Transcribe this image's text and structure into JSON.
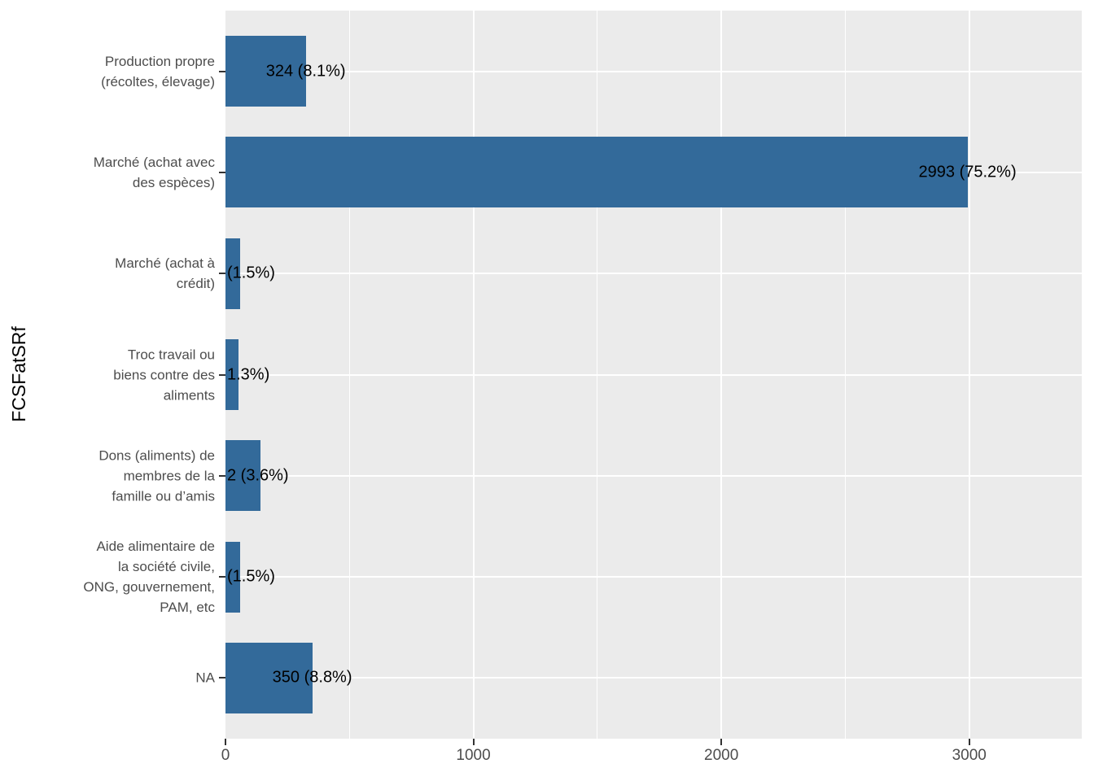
{
  "y_axis_title": "FCSFatSRf",
  "style": {
    "bar_color": "#336A9A",
    "panel_background": "#EBEBEB",
    "grid_color": "#FFFFFF",
    "axis_text_color": "#4D4D4D",
    "value_label_color": "#000000",
    "tick_color": "#333333"
  },
  "chart_data": {
    "type": "bar",
    "orientation": "horizontal",
    "title": "",
    "xlabel": "",
    "ylabel": "FCSFatSRf",
    "xlim": [
      0,
      3454
    ],
    "x_ticks": [
      0,
      1000,
      2000,
      3000
    ],
    "x_minor_ticks": [
      500,
      1500,
      2500
    ],
    "grid": true,
    "legend": false,
    "categories": [
      "NA",
      "Aide alimentaire de la société civile, ONG, gouvernement, PAM, etc",
      "Dons (aliments) de membres de la famille ou d’amis",
      "Troc travail ou biens contre des aliments",
      "Marché (achat à crédit)",
      "Marché (achat avec des espèces)",
      "Production propre (récoltes, élevage)"
    ],
    "values": [
      350,
      60,
      142,
      52,
      60,
      2993,
      324
    ],
    "percentages": [
      8.8,
      1.5,
      3.6,
      1.3,
      1.5,
      75.2,
      8.1
    ],
    "bars": [
      {
        "category_lines": [
          "NA"
        ],
        "value": 350,
        "label": "350 (8.8%)",
        "label_clipped": false
      },
      {
        "category_lines": [
          "Aide alimentaire de",
          "la société civile,",
          "ONG, gouvernement,",
          "PAM, etc"
        ],
        "value": 60,
        "label": "(1.5%)",
        "label_clipped": true
      },
      {
        "category_lines": [
          "Dons (aliments) de",
          "membres de la",
          "famille ou d’amis"
        ],
        "value": 142,
        "label": "2 (3.6%)",
        "label_clipped": true
      },
      {
        "category_lines": [
          "Troc travail ou",
          "biens contre des",
          "aliments"
        ],
        "value": 52,
        "label": "1.3%)",
        "label_clipped": true
      },
      {
        "category_lines": [
          "Marché (achat à",
          "crédit)"
        ],
        "value": 60,
        "label": "(1.5%)",
        "label_clipped": true
      },
      {
        "category_lines": [
          "Marché (achat avec",
          "des espèces)"
        ],
        "value": 2993,
        "label": "2993 (75.2%)",
        "label_clipped": false
      },
      {
        "category_lines": [
          "Production propre",
          "(récoltes, élevage)"
        ],
        "value": 324,
        "label": "324 (8.1%)",
        "label_clipped": false
      }
    ]
  }
}
